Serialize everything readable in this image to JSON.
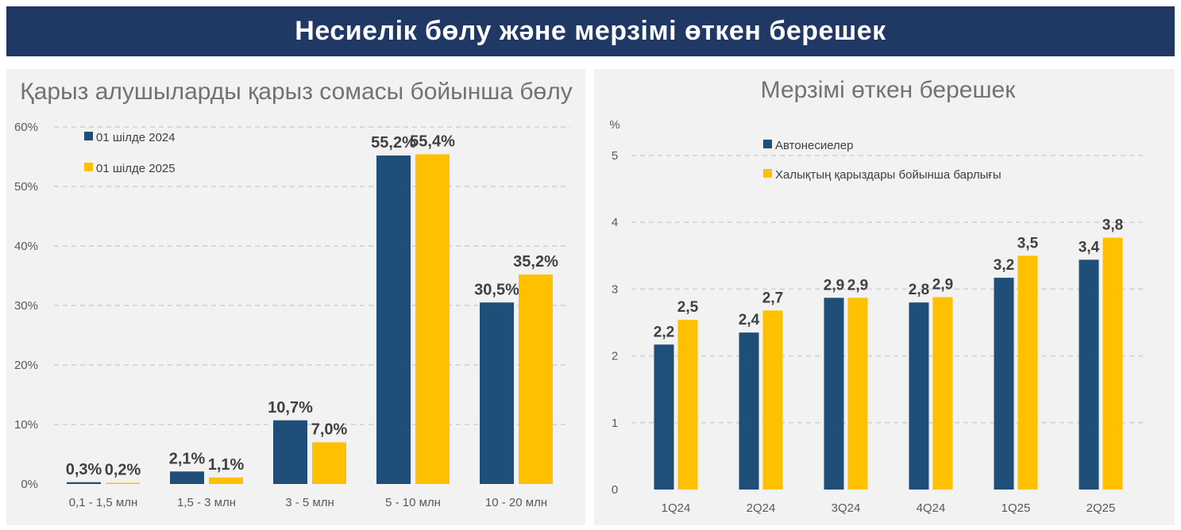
{
  "header": {
    "title": "Несиелік бөлу және мерзімі өткен берешек"
  },
  "colors": {
    "navy": "#1f4e79",
    "gold": "#ffc000",
    "header_bg": "#1f3864"
  },
  "chart_data": [
    {
      "type": "bar",
      "title": "Қарыз алушыларды қарыз сомасы бойынша бөлу",
      "categories": [
        "0,1 - 1,5 млн",
        "1,5 - 3 млн",
        "3 - 5 млн",
        "5 - 10 млн",
        "10 - 20 млн"
      ],
      "series": [
        {
          "name": "01 шілде 2024",
          "values": [
            0.3,
            2.1,
            10.7,
            55.2,
            30.5
          ],
          "labels": [
            "0,3%",
            "2,1%",
            "10,7%",
            "55,2%",
            "30,5%"
          ]
        },
        {
          "name": "01 шілде 2025",
          "values": [
            0.2,
            1.1,
            7.0,
            55.4,
            35.2
          ],
          "labels": [
            "0,2%",
            "1,1%",
            "7,0%",
            "55,4%",
            "35,2%"
          ]
        }
      ],
      "yticks": [
        "0%",
        "10%",
        "20%",
        "30%",
        "40%",
        "50%",
        "60%"
      ],
      "ylim": [
        0,
        60
      ],
      "grid": true,
      "legend": "top-left"
    },
    {
      "type": "bar",
      "title": "Мерзімі өткен берешек",
      "ylabel": "%",
      "categories": [
        "1Q24",
        "2Q24",
        "3Q24",
        "4Q24",
        "1Q25",
        "2Q25"
      ],
      "series": [
        {
          "name": "Автонесиелер",
          "values": [
            2.17,
            2.35,
            2.87,
            2.8,
            3.17,
            3.44
          ],
          "labels": [
            "2,2",
            "2,4",
            "2,9",
            "2,8",
            "3,2",
            "3,4"
          ]
        },
        {
          "name": "Халықтың қарыздары бойынша барлығы",
          "values": [
            2.54,
            2.68,
            2.87,
            2.88,
            3.5,
            3.77
          ],
          "labels": [
            "2,5",
            "2,7",
            "2,9",
            "2,9",
            "3,5",
            "3,8"
          ]
        }
      ],
      "yticks": [
        "0",
        "1",
        "2",
        "3",
        "4",
        "5"
      ],
      "ylim": [
        0,
        5
      ],
      "grid": true,
      "legend": "top-left"
    }
  ]
}
